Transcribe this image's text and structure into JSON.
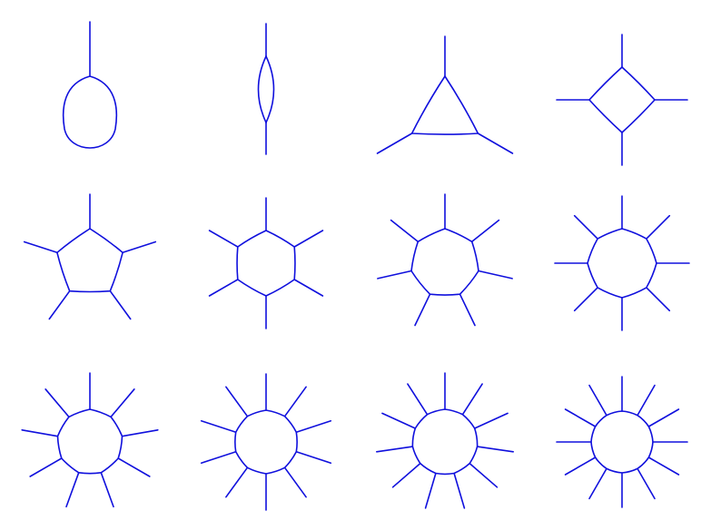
{
  "diagrams": [
    {
      "legs": 1
    },
    {
      "legs": 2
    },
    {
      "legs": 3
    },
    {
      "legs": 4
    },
    {
      "legs": 5
    },
    {
      "legs": 6
    },
    {
      "legs": 7
    },
    {
      "legs": 8
    },
    {
      "legs": 9
    },
    {
      "legs": 10
    },
    {
      "legs": 11
    },
    {
      "legs": 12
    }
  ],
  "colors": {
    "stroke": "#1010dd",
    "background": "#ffffff"
  }
}
